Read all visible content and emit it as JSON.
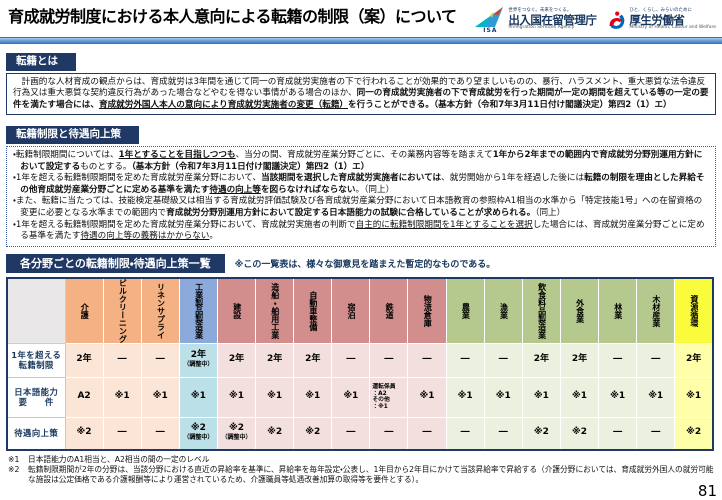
{
  "page": {
    "number": "81"
  },
  "header": {
    "title": "育成就労制度における本人意向による転籍の制限（案）について",
    "isa": {
      "mark": "ISA",
      "slogan": "世界をつなぐ。未来をつくる。",
      "name": "出入国在留管理庁",
      "name_en": "Immigration Services Agency"
    },
    "mhlw": {
      "slogan": "ひと、くらし、みらいのために",
      "name": "厚生労働省",
      "name_en": "Ministry of Health, Labour and Welfare"
    }
  },
  "section_tenseki": {
    "heading": "転籍とは",
    "segments": [
      {
        "t": "　計画的な人材育成の観点からは、育成就労は3年間を通じて同一の育成就労実施者の下で行われることが効果的であり望ましいものの、暴行、ハラスメント、重大悪質な法令違反行為又は重大悪質な契約違反行為があった場合などやむを得ない事情がある場合のほか、",
        "s": "n"
      },
      {
        "t": "同一の育成就労実施者の下で育成就労を行った期間が一定の期間を超えている等の一定の要件を満たす場合には、",
        "s": "b"
      },
      {
        "t": "育成就労外国人本人の意向により育成就労実施者の変更（転籍）",
        "s": "bu"
      },
      {
        "t": "を行うことができる。",
        "s": "b"
      },
      {
        "t": "（基本方針（令和7年3月11日付け閣議決定）第四2（1）エ）",
        "s": "b"
      }
    ]
  },
  "section_seigen": {
    "heading": "転籍制限と待遇向上策",
    "bullets": [
      [
        {
          "t": "・転籍制限期間については、",
          "s": "n"
        },
        {
          "t": "1年とすることを目指しつつも",
          "s": "bu"
        },
        {
          "t": "、当分の間、育成就労産業分野ごとに、その業務内容等を踏まえて",
          "s": "n"
        },
        {
          "t": "1年から2年までの範囲内で育成就労分野別運用方針において設定する",
          "s": "b"
        },
        {
          "t": "ものとする。",
          "s": "n"
        },
        {
          "t": "（基本方針（令和7年3月11日付け閣議決定）第四2（1）エ）",
          "s": "b"
        }
      ],
      [
        {
          "t": "・1年を超える転籍制限期間を定めた育成就労産業分野において、",
          "s": "n"
        },
        {
          "t": "当該期間を選択した育成就労実施者においては",
          "s": "b"
        },
        {
          "t": "、就労開始から1年を経過した後には",
          "s": "n"
        },
        {
          "t": "転籍の制限を理由とした昇給その他育成就労産業分野ごとに定める基準を満たす",
          "s": "b"
        },
        {
          "t": "待遇の向上等",
          "s": "bu"
        },
        {
          "t": "を図らなければならない",
          "s": "b"
        },
        {
          "t": "。（同上）",
          "s": "n"
        }
      ],
      [
        {
          "t": "・また、転籍に当たっては、技能検定基礎級又は相当する育成就労評価試験及び各育成就労産業分野において日本語教育の参照枠A1相当の水準から「特定技能1号」への在留資格の変更に必要となる水準までの範囲内で",
          "s": "n"
        },
        {
          "t": "育成就労分野別運用方針において設定する日本語能力の試験に合格していることが求められる。",
          "s": "b"
        },
        {
          "t": "（同上）",
          "s": "n"
        }
      ],
      [
        {
          "t": "・1年を超える転籍制限期間を定めた育成就労産業分野において、育成就労実施者の判断で",
          "s": "n"
        },
        {
          "t": "自主的に転籍制限期間を1年とすることを選択",
          "s": "u"
        },
        {
          "t": "した場合には、育成就労産業分野ごとに定める基準を満たす",
          "s": "n"
        },
        {
          "t": "待遇の向上等の義務はかからない",
          "s": "u"
        },
        {
          "t": "。",
          "s": "n"
        }
      ]
    ]
  },
  "table": {
    "heading": "各分野ごとの転籍制限・待遇向上策一覧",
    "note": "※この一覧表は、様々な御意見を踏まえた暫定的なものである。",
    "columns": [
      {
        "label": "介護",
        "group": "orange"
      },
      {
        "label": "ビルクリーニング",
        "group": "orange"
      },
      {
        "label": "リネンサプライ",
        "group": "orange"
      },
      {
        "label": "工業製品製造業",
        "group": "blue"
      },
      {
        "label": "建設",
        "group": "red"
      },
      {
        "label": "造船・舶用工業",
        "group": "red"
      },
      {
        "label": "自動車整備",
        "group": "red"
      },
      {
        "label": "宿泊",
        "group": "red"
      },
      {
        "label": "鉄道",
        "group": "red"
      },
      {
        "label": "物流倉庫",
        "group": "red"
      },
      {
        "label": "農業",
        "group": "green"
      },
      {
        "label": "漁業",
        "group": "green"
      },
      {
        "label": "飲食料品製造業",
        "group": "green"
      },
      {
        "label": "外食業",
        "group": "green"
      },
      {
        "label": "林業",
        "group": "green"
      },
      {
        "label": "木材産業",
        "group": "green"
      },
      {
        "label": "資源循環",
        "group": "yellow"
      }
    ],
    "rows": [
      {
        "label": "1年を超える\n転籍制限",
        "cells": [
          {
            "t": "2年"
          },
          {
            "t": "―"
          },
          {
            "t": "―"
          },
          {
            "t": "2年",
            "n": "（調整中）"
          },
          {
            "t": "2年"
          },
          {
            "t": "2年"
          },
          {
            "t": "2年"
          },
          {
            "t": "―"
          },
          {
            "t": "―"
          },
          {
            "t": "―"
          },
          {
            "t": "―"
          },
          {
            "t": "―"
          },
          {
            "t": "2年"
          },
          {
            "t": "2年"
          },
          {
            "t": "―"
          },
          {
            "t": "―"
          },
          {
            "t": "2年"
          }
        ]
      },
      {
        "label": "日本語能力\n要　　件",
        "cells": [
          {
            "t": "A2"
          },
          {
            "t": "※1"
          },
          {
            "t": "※1"
          },
          {
            "t": "※1"
          },
          {
            "t": "※1"
          },
          {
            "t": "※1"
          },
          {
            "t": "※1"
          },
          {
            "t": "※1"
          },
          {
            "lines": [
              "運転係員",
              "：A2",
              "その他",
              "：※1"
            ]
          },
          {
            "t": "※1"
          },
          {
            "t": "※1"
          },
          {
            "t": "※1"
          },
          {
            "t": "※1"
          },
          {
            "t": "※1"
          },
          {
            "t": "※1"
          },
          {
            "t": "※1"
          },
          {
            "t": "※1"
          }
        ]
      },
      {
        "label": "待遇向上策",
        "cells": [
          {
            "t": "※2"
          },
          {
            "t": "―"
          },
          {
            "t": "―"
          },
          {
            "t": "※2",
            "n": "（調整中）"
          },
          {
            "t": "※2",
            "n": "（調整中）"
          },
          {
            "t": "※2"
          },
          {
            "t": "※2"
          },
          {
            "t": "―"
          },
          {
            "t": "―"
          },
          {
            "t": "―"
          },
          {
            "t": "―"
          },
          {
            "t": "―"
          },
          {
            "t": "※2"
          },
          {
            "t": "※2"
          },
          {
            "t": "―"
          },
          {
            "t": "―"
          },
          {
            "t": "※2"
          }
        ]
      }
    ]
  },
  "footnotes": [
    {
      "marker": "※1",
      "text": "日本語能力のA1相当と、A2相当の間の一定のレベル"
    },
    {
      "marker": "※2",
      "text": "転籍制限期間が2年の分野は、当該分野における直近の昇給率を基準に、昇給率を毎年設定・公表し、1年目から2年目にかけて当該昇給率で昇給する（介護分野においては、育成就労外国人の就労可能な施設は公定価格である介護報酬等により運営されているため、介護職員等処遇改善加算の取得等を要件とする）。"
    }
  ],
  "colors": {
    "navy": "#1f3864",
    "group_orange": "#f4b183",
    "group_blue": "#8ba9da",
    "group_red": "#d18e8c",
    "group_green": "#b5c98e",
    "group_yellow": "#fbfb3d",
    "isa_red": "#e8380d",
    "mhlw_red": "#e60012",
    "mhlw_blue": "#0068b7"
  }
}
